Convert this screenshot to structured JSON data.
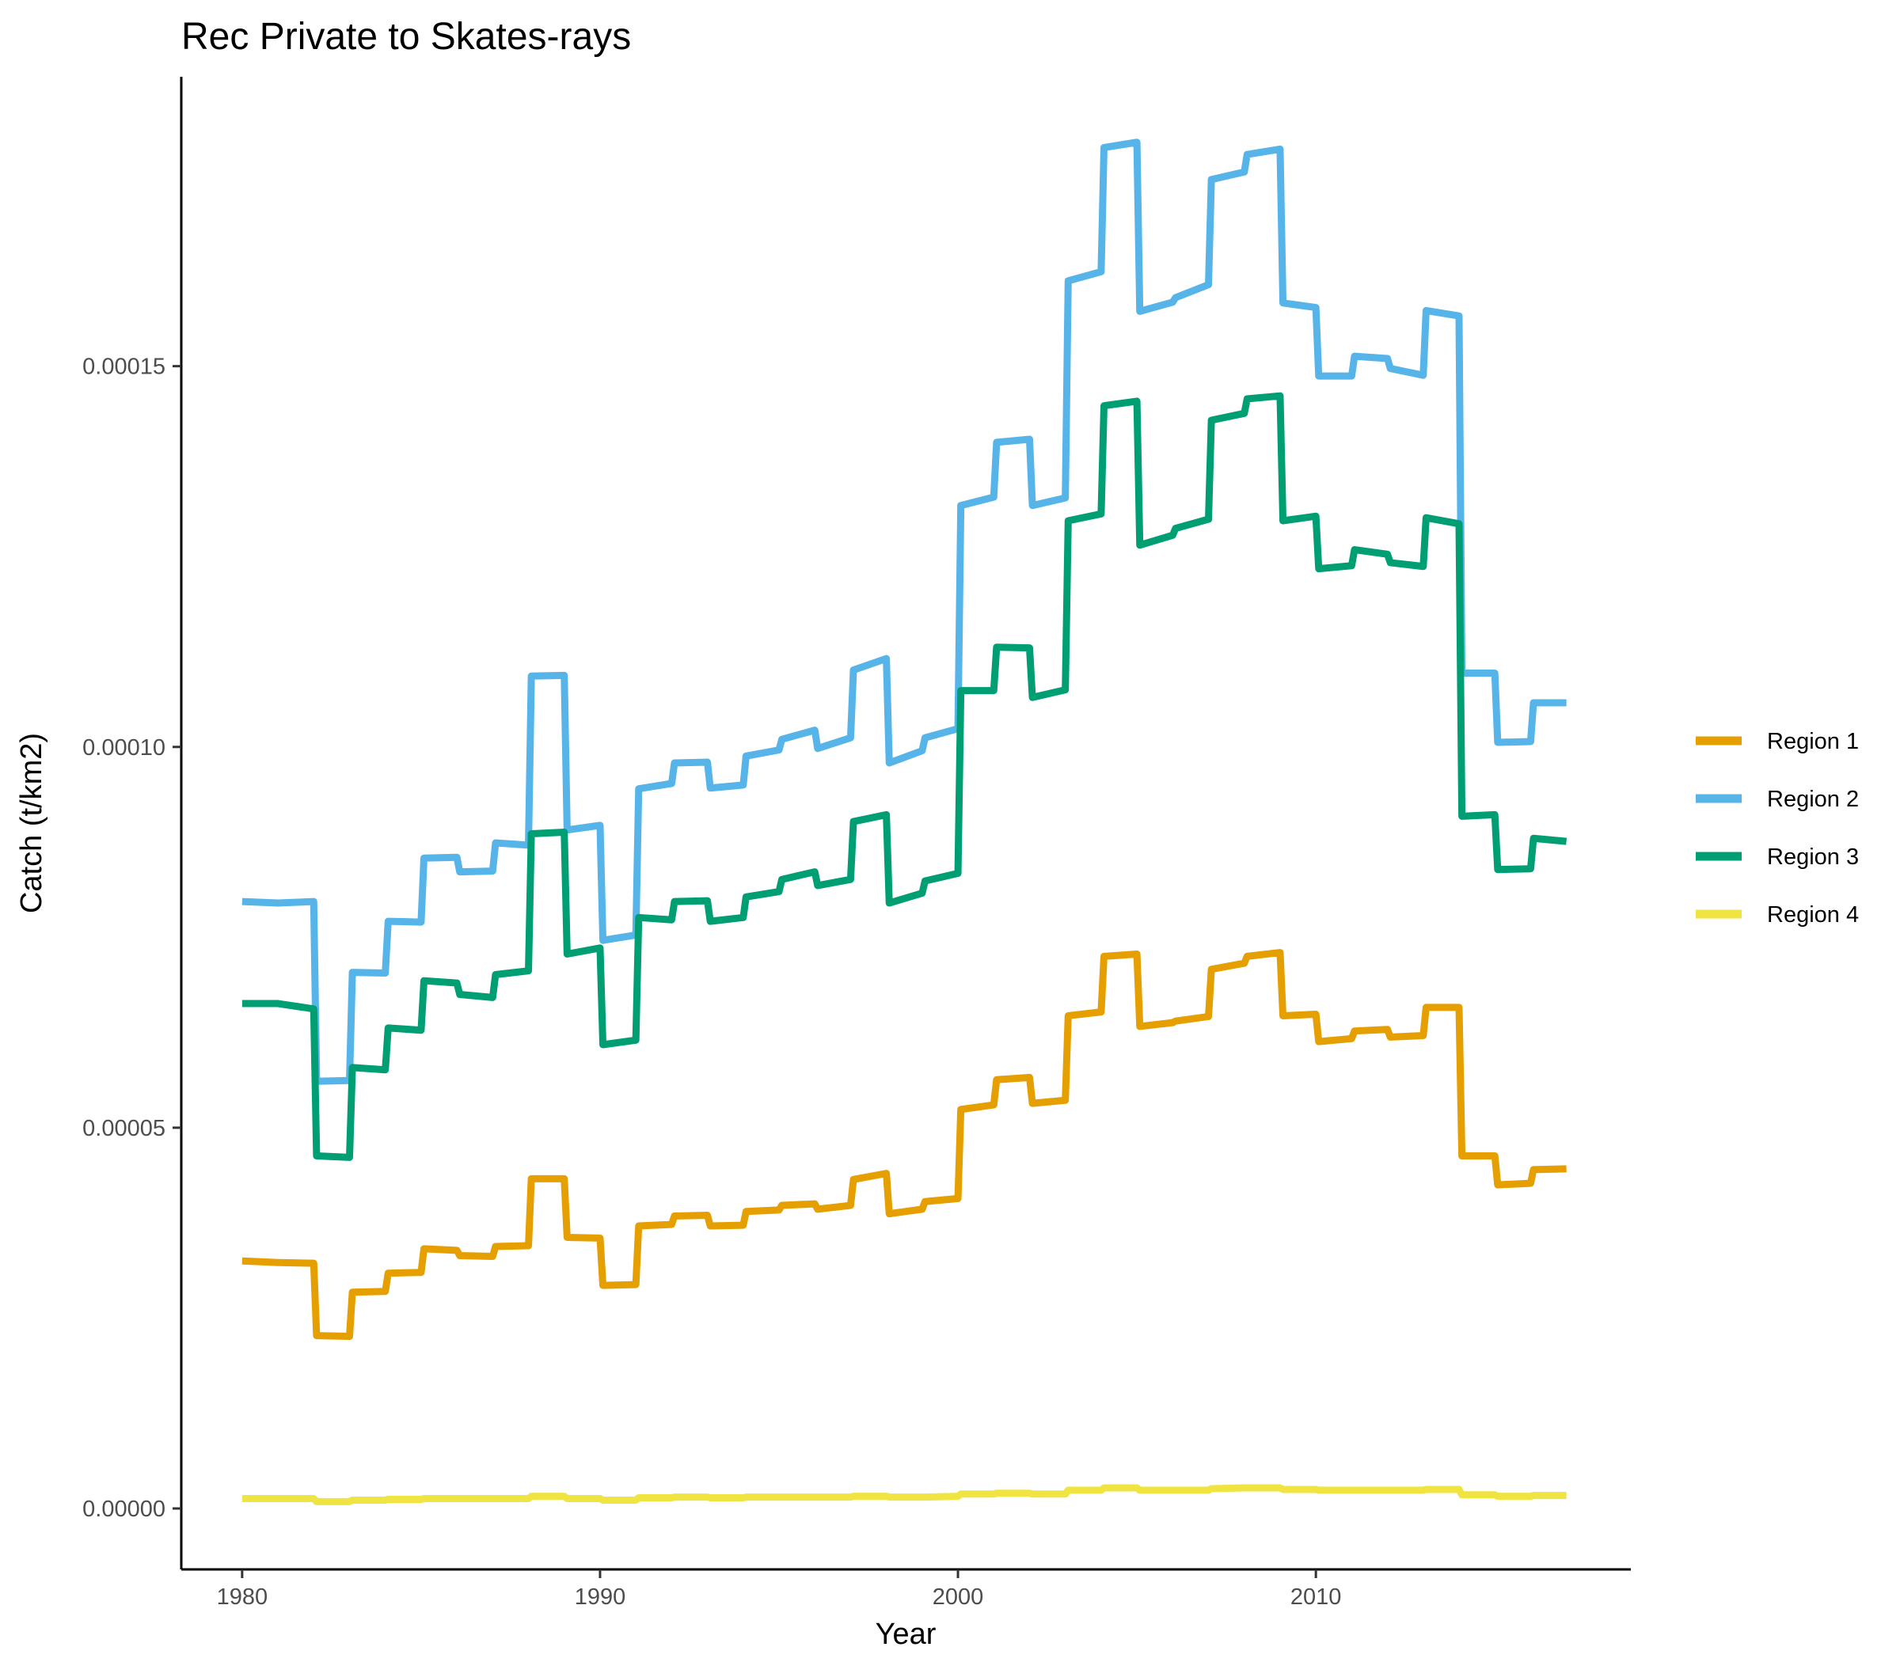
{
  "chart_data": {
    "type": "line",
    "title": "Rec Private to Skates-rays",
    "xlabel": "Year",
    "ylabel": "Catch (t/km2)",
    "xlim": [
      1978.3,
      2018.8
    ],
    "ylim": [
      -8e-06,
      0.000188
    ],
    "x_ticks": [
      1980,
      1990,
      2000,
      2010
    ],
    "x_tick_labels": [
      "1980",
      "1990",
      "2000",
      "2010"
    ],
    "y_ticks": [
      0,
      5e-05,
      0.0001,
      0.00015
    ],
    "y_tick_labels": [
      "0.00000",
      "0.00005",
      "0.00010",
      "0.00015"
    ],
    "grid": false,
    "legend_position": "right",
    "series": [
      {
        "name": "Region 1",
        "color": "#E69F00",
        "x": [
          1980,
          1981,
          1982,
          1982.08,
          1983,
          1983.08,
          1984,
          1984.08,
          1985,
          1985.08,
          1986,
          1986.08,
          1987,
          1987.08,
          1988,
          1988.08,
          1989,
          1989.08,
          1990,
          1990.08,
          1991,
          1991.08,
          1992,
          1992.08,
          1993,
          1993.08,
          1994,
          1994.08,
          1995,
          1995.08,
          1996,
          1996.08,
          1997,
          1997.08,
          1998,
          1998.08,
          1999,
          1999.08,
          2000,
          2000.08,
          2001,
          2001.08,
          2002,
          2002.08,
          2003,
          2003.08,
          2004,
          2004.08,
          2005,
          2005.08,
          2006,
          2006.08,
          2007,
          2007.08,
          2008,
          2008.08,
          2009,
          2009.08,
          2010,
          2010.08,
          2011,
          2011.08,
          2012,
          2012.08,
          2013,
          2013.08,
          2014,
          2014.08,
          2015,
          2015.08,
          2016,
          2016.08,
          2017
        ],
        "values": [
          3.25e-05,
          3.23e-05,
          3.22e-05,
          2.27e-05,
          2.26e-05,
          2.84e-05,
          2.85e-05,
          3.09e-05,
          3.1e-05,
          3.41e-05,
          3.39e-05,
          3.32e-05,
          3.31e-05,
          3.44e-05,
          3.45e-05,
          4.33e-05,
          4.33e-05,
          3.56e-05,
          3.55e-05,
          2.93e-05,
          2.94e-05,
          3.71e-05,
          3.73e-05,
          3.84e-05,
          3.85e-05,
          3.71e-05,
          3.72e-05,
          3.9e-05,
          3.92e-05,
          3.98e-05,
          4e-05,
          3.93e-05,
          3.98e-05,
          4.32e-05,
          4.4e-05,
          3.87e-05,
          3.93e-05,
          4.03e-05,
          4.07e-05,
          5.24e-05,
          5.3e-05,
          5.63e-05,
          5.66e-05,
          5.32e-05,
          5.36e-05,
          6.47e-05,
          6.52e-05,
          7.25e-05,
          7.28e-05,
          6.33e-05,
          6.38e-05,
          6.4e-05,
          6.46e-05,
          7.08e-05,
          7.16e-05,
          7.25e-05,
          7.3e-05,
          6.47e-05,
          6.49e-05,
          6.13e-05,
          6.17e-05,
          6.27e-05,
          6.29e-05,
          6.19e-05,
          6.21e-05,
          6.58e-05,
          6.58e-05,
          4.63e-05,
          4.63e-05,
          4.25e-05,
          4.27e-05,
          4.45e-05,
          4.46e-05
        ]
      },
      {
        "name": "Region 2",
        "color": "#56B4E9",
        "x": [
          1980,
          1981,
          1982,
          1982.08,
          1983,
          1983.08,
          1984,
          1984.08,
          1985,
          1985.08,
          1986,
          1986.08,
          1987,
          1987.08,
          1988,
          1988.08,
          1989,
          1989.08,
          1990,
          1990.08,
          1991,
          1991.08,
          1992,
          1992.08,
          1993,
          1993.08,
          1994,
          1994.08,
          1995,
          1995.08,
          1996,
          1996.08,
          1997,
          1997.08,
          1998,
          1998.08,
          1999,
          1999.08,
          2000,
          2000.08,
          2001,
          2001.08,
          2002,
          2002.08,
          2003,
          2003.08,
          2004,
          2004.08,
          2005,
          2005.08,
          2006,
          2006.08,
          2007,
          2007.08,
          2008,
          2008.08,
          2009,
          2009.08,
          2010,
          2010.08,
          2011,
          2011.08,
          2012,
          2012.08,
          2013,
          2013.08,
          2014,
          2014.08,
          2015,
          2015.08,
          2016,
          2016.08,
          2017
        ],
        "values": [
          7.97e-05,
          7.95e-05,
          7.97e-05,
          5.61e-05,
          5.62e-05,
          7.04e-05,
          7.03e-05,
          7.71e-05,
          7.7e-05,
          8.54e-05,
          8.55e-05,
          8.36e-05,
          8.37e-05,
          8.74e-05,
          8.71e-05,
          0.0001093,
          0.0001094,
          8.91e-05,
          8.97e-05,
          7.46e-05,
          7.53e-05,
          9.45e-05,
          9.52e-05,
          9.79e-05,
          9.8e-05,
          9.46e-05,
          9.5e-05,
          9.88e-05,
          9.96e-05,
          0.000101,
          0.0001022,
          9.98e-05,
          0.0001012,
          0.0001101,
          0.0001116,
          9.79e-05,
          9.95e-05,
          0.0001012,
          0.0001024,
          0.0001317,
          0.0001328,
          0.00014,
          0.0001404,
          0.0001317,
          0.0001327,
          0.0001612,
          0.0001624,
          0.0001787,
          0.0001794,
          0.0001572,
          0.0001584,
          0.000159,
          0.0001607,
          0.0001745,
          0.0001755,
          0.0001778,
          0.0001785,
          0.0001583,
          0.0001577,
          0.0001487,
          0.0001487,
          0.0001513,
          0.000151,
          0.0001497,
          0.0001488,
          0.0001573,
          0.0001566,
          0.0001097,
          0.0001097,
          0.0001006,
          0.0001007,
          0.0001058,
          0.0001058
        ]
      },
      {
        "name": "Region 3",
        "color": "#009E73",
        "x": [
          1980,
          1981,
          1982,
          1982.08,
          1983,
          1983.08,
          1984,
          1984.08,
          1985,
          1985.08,
          1986,
          1986.08,
          1987,
          1987.08,
          1988,
          1988.08,
          1989,
          1989.08,
          1990,
          1990.08,
          1991,
          1991.08,
          1992,
          1992.08,
          1993,
          1993.08,
          1994,
          1994.08,
          1995,
          1995.08,
          1996,
          1996.08,
          1997,
          1997.08,
          1998,
          1998.08,
          1999,
          1999.08,
          2000,
          2000.08,
          2001,
          2001.08,
          2002,
          2002.08,
          2003,
          2003.08,
          2004,
          2004.08,
          2005,
          2005.08,
          2006,
          2006.08,
          2007,
          2007.08,
          2008,
          2008.08,
          2009,
          2009.08,
          2010,
          2010.08,
          2011,
          2011.08,
          2012,
          2012.08,
          2013,
          2013.08,
          2014,
          2014.08,
          2015,
          2015.08,
          2016,
          2016.08,
          2017
        ],
        "values": [
          6.63e-05,
          6.63e-05,
          6.56e-05,
          4.63e-05,
          4.61e-05,
          5.79e-05,
          5.76e-05,
          6.31e-05,
          6.28e-05,
          6.93e-05,
          6.9e-05,
          6.75e-05,
          6.71e-05,
          7.01e-05,
          7.06e-05,
          8.86e-05,
          8.88e-05,
          7.28e-05,
          7.36e-05,
          6.09e-05,
          6.15e-05,
          7.76e-05,
          7.73e-05,
          7.97e-05,
          7.98e-05,
          7.71e-05,
          7.76e-05,
          8.03e-05,
          8.1e-05,
          8.26e-05,
          8.36e-05,
          8.18e-05,
          8.26e-05,
          9.02e-05,
          9.11e-05,
          7.95e-05,
          8.08e-05,
          8.24e-05,
          8.34e-05,
          0.0001074,
          0.0001074,
          0.0001131,
          0.000113,
          0.0001065,
          0.0001075,
          0.0001297,
          0.0001306,
          0.0001448,
          0.0001454,
          0.0001265,
          0.0001278,
          0.0001287,
          0.0001299,
          0.0001429,
          0.0001438,
          0.0001457,
          0.0001461,
          0.0001297,
          0.0001303,
          0.0001234,
          0.0001238,
          0.0001259,
          0.0001253,
          0.0001242,
          0.0001237,
          0.0001301,
          0.0001293,
          9.09e-05,
          9.11e-05,
          8.39e-05,
          8.4e-05,
          8.8e-05,
          8.76e-05
        ]
      },
      {
        "name": "Region 4",
        "color": "#F0E442",
        "x": [
          1980,
          1981,
          1982,
          1982.08,
          1983,
          1983.08,
          1984,
          1984.08,
          1985,
          1985.08,
          1986,
          1986.08,
          1987,
          1987.08,
          1988,
          1988.08,
          1989,
          1989.08,
          1990,
          1990.08,
          1991,
          1991.08,
          1992,
          1992.08,
          1993,
          1993.08,
          1994,
          1994.08,
          1995,
          1995.08,
          1996,
          1996.08,
          1997,
          1997.08,
          1998,
          1998.08,
          1999,
          1999.08,
          2000,
          2000.08,
          2001,
          2001.08,
          2002,
          2002.08,
          2003,
          2003.08,
          2004,
          2004.08,
          2005,
          2005.08,
          2006,
          2006.08,
          2007,
          2007.08,
          2008,
          2008.08,
          2009,
          2009.08,
          2010,
          2010.08,
          2011,
          2011.08,
          2012,
          2012.08,
          2013,
          2013.08,
          2014,
          2014.08,
          2015,
          2015.08,
          2016,
          2016.08,
          2017
        ],
        "values": [
          1.3e-06,
          1.3e-06,
          1.3e-06,
          9e-07,
          9e-07,
          1.1e-06,
          1.1e-06,
          1.2e-06,
          1.2e-06,
          1.3e-06,
          1.3e-06,
          1.3e-06,
          1.3e-06,
          1.3e-06,
          1.3e-06,
          1.6e-06,
          1.6e-06,
          1.3e-06,
          1.3e-06,
          1.1e-06,
          1.1e-06,
          1.4e-06,
          1.4e-06,
          1.5e-06,
          1.5e-06,
          1.4e-06,
          1.4e-06,
          1.5e-06,
          1.5e-06,
          1.5e-06,
          1.5e-06,
          1.5e-06,
          1.5e-06,
          1.6e-06,
          1.6e-06,
          1.5e-06,
          1.5e-06,
          1.5e-06,
          1.6e-06,
          1.9e-06,
          1.9e-06,
          2e-06,
          2e-06,
          1.9e-06,
          1.9e-06,
          2.4e-06,
          2.4e-06,
          2.7e-06,
          2.7e-06,
          2.4e-06,
          2.4e-06,
          2.4e-06,
          2.4e-06,
          2.6e-06,
          2.7e-06,
          2.7e-06,
          2.7e-06,
          2.5e-06,
          2.5e-06,
          2.4e-06,
          2.4e-06,
          2.4e-06,
          2.4e-06,
          2.4e-06,
          2.4e-06,
          2.5e-06,
          2.5e-06,
          1.8e-06,
          1.8e-06,
          1.6e-06,
          1.6e-06,
          1.7e-06,
          1.7e-06
        ]
      }
    ]
  }
}
